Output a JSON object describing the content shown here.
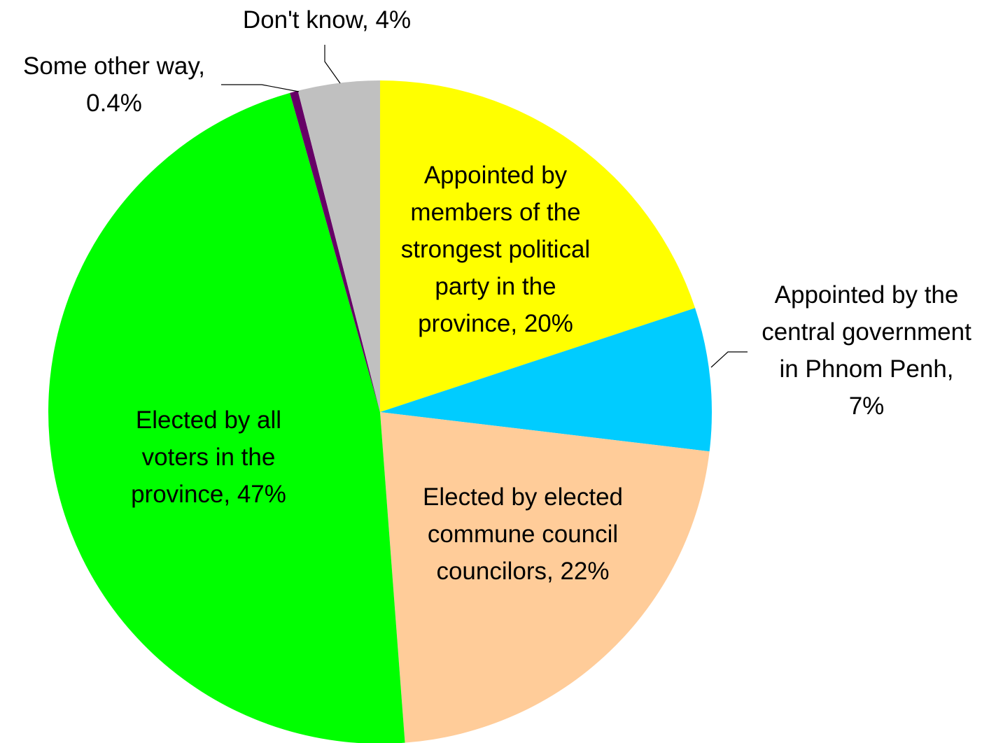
{
  "chart_data": {
    "type": "pie",
    "title": "",
    "slices": [
      {
        "name": "Appointed by members of the strongest political party in the province",
        "value": 20,
        "color": "#FFFF00",
        "label_lines": [
          "Appointed by",
          "members of the",
          "strongest political",
          "party in the",
          "province, 20%"
        ]
      },
      {
        "name": "Appointed by the central government in Phnom Penh",
        "value": 7,
        "color": "#00CCFF",
        "label_lines": [
          "Appointed by the",
          "central government",
          "in Phnom Penh,",
          "7%"
        ]
      },
      {
        "name": "Elected by elected commune council councilors",
        "value": 22,
        "color": "#FFCC99",
        "label_lines": [
          "Elected by elected",
          "commune council",
          "councilors, 22%"
        ]
      },
      {
        "name": "Elected by all voters in the province",
        "value": 47,
        "color": "#00FF00",
        "label_lines": [
          "Elected by all",
          "voters in the",
          "province, 47%"
        ]
      },
      {
        "name": "Some other way",
        "value": 0.4,
        "color": "#660066",
        "label_lines": [
          "Some other way,",
          "0.4%"
        ]
      },
      {
        "name": "Don't know",
        "value": 4,
        "color": "#C0C0C0",
        "label_lines": [
          "Don't know, 4%"
        ]
      }
    ],
    "legend": "none",
    "start": "12 o'clock, clockwise"
  }
}
